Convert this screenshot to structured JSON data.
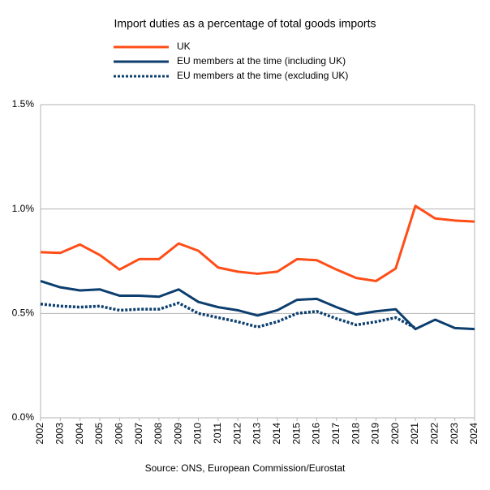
{
  "chart_data": {
    "type": "line",
    "title": "Import duties as a percentage of total goods imports",
    "source": "Source: ONS, European Commission/Eurostat",
    "categories": [
      "2002",
      "2003",
      "2004",
      "2005",
      "2006",
      "2007",
      "2008",
      "2009",
      "2010",
      "2011",
      "2012",
      "2013",
      "2014",
      "2015",
      "2016",
      "2017",
      "2018",
      "2019",
      "2020",
      "2021",
      "2022",
      "2023",
      "2024"
    ],
    "series": [
      {
        "name": "UK",
        "color": "#ff4d17",
        "dashed": false,
        "values": [
          0.793,
          0.79,
          0.83,
          0.78,
          0.71,
          0.76,
          0.76,
          0.835,
          0.8,
          0.72,
          0.7,
          0.69,
          0.7,
          0.76,
          0.755,
          0.71,
          0.67,
          0.655,
          0.715,
          1.015,
          0.955,
          0.945,
          0.94
        ]
      },
      {
        "name": "EU members at the time (including UK)",
        "color": "#0c3e6e",
        "dashed": false,
        "values": [
          0.655,
          0.625,
          0.61,
          0.615,
          0.585,
          0.585,
          0.58,
          0.615,
          0.555,
          0.53,
          0.515,
          0.49,
          0.515,
          0.565,
          0.57,
          0.53,
          0.495,
          0.51,
          0.52,
          0.425,
          0.47,
          0.43,
          0.425
        ]
      },
      {
        "name": "EU members at the time (excluding UK)",
        "color": "#0c3e6e",
        "dashed": true,
        "values": [
          0.545,
          0.535,
          0.53,
          0.535,
          0.515,
          0.52,
          0.52,
          0.55,
          0.5,
          0.48,
          0.46,
          0.435,
          0.46,
          0.5,
          0.51,
          0.475,
          0.445,
          0.46,
          0.48,
          0.43,
          null,
          null,
          null
        ]
      }
    ],
    "ylim": [
      0,
      1.5
    ],
    "yticks": [
      {
        "value": 0,
        "label": "0.0%"
      },
      {
        "value": 0.5,
        "label": "0.5%"
      },
      {
        "value": 1,
        "label": "1.0%"
      },
      {
        "value": 1.5,
        "label": "1.5%"
      }
    ],
    "grid": true
  }
}
